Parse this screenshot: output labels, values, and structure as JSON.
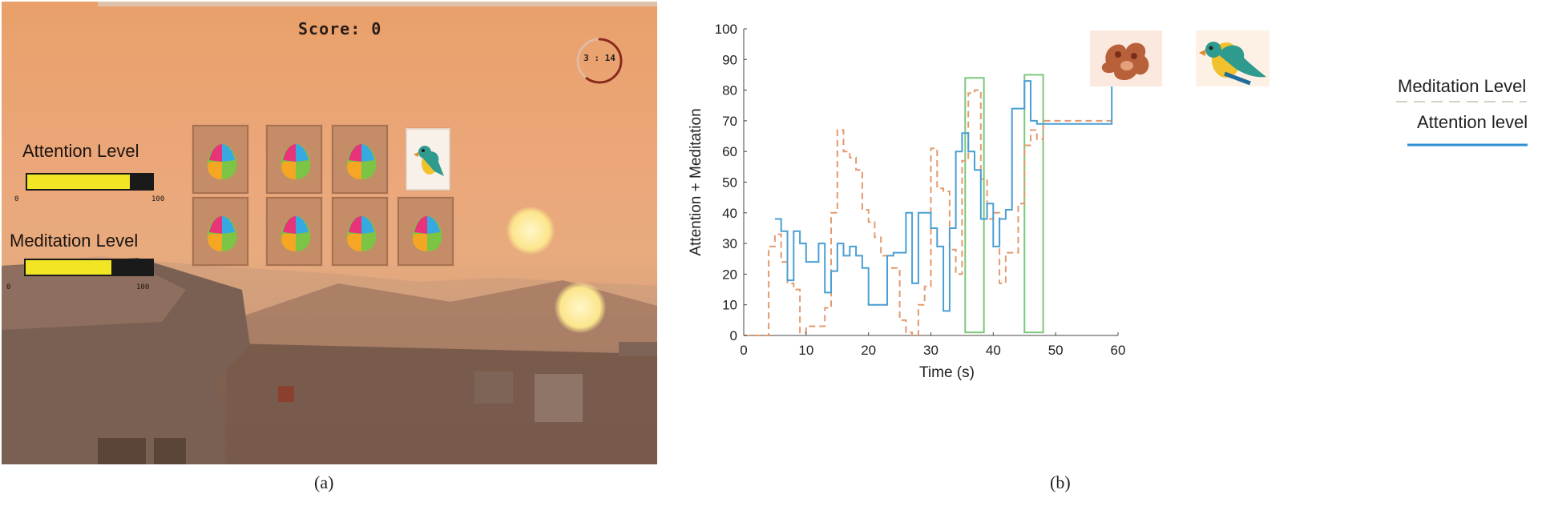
{
  "captions": {
    "a": "(a)",
    "b": "(b)"
  },
  "game": {
    "score_text": "Score: 0",
    "timer_text": "3 : 14",
    "timer_fraction": 0.6,
    "attention": {
      "label": "Attention Level",
      "value": 82,
      "min_label": "0",
      "max_label": "100"
    },
    "meditation": {
      "label": "Meditation Level",
      "value": 68,
      "min_label": "0",
      "max_label": "100"
    },
    "cards": [
      {
        "state": "hidden",
        "icon": "egg-puzzle-icon"
      },
      {
        "state": "hidden",
        "icon": "egg-puzzle-icon"
      },
      {
        "state": "hidden",
        "icon": "egg-puzzle-icon"
      },
      {
        "state": "revealed",
        "icon": "parrot-icon"
      },
      {
        "state": "hidden",
        "icon": "egg-puzzle-icon"
      },
      {
        "state": "hidden",
        "icon": "egg-puzzle-icon"
      },
      {
        "state": "hidden",
        "icon": "egg-puzzle-icon"
      },
      {
        "state": "hidden",
        "icon": "egg-puzzle-icon"
      }
    ],
    "colors": {
      "bar_fill": "#f2e624",
      "card": "#c58d67"
    }
  },
  "chart_data": {
    "type": "line",
    "title": "",
    "xlabel": "Time (s)",
    "ylabel": "Attention + Meditation",
    "xlim": [
      0,
      60
    ],
    "ylim": [
      0,
      100
    ],
    "xticks": [
      0,
      10,
      20,
      30,
      40,
      50,
      60
    ],
    "yticks": [
      0,
      10,
      20,
      30,
      40,
      50,
      60,
      70,
      80,
      90,
      100
    ],
    "grid": false,
    "legend_position": "right",
    "series": [
      {
        "name": "Meditation Level",
        "style": "dashed",
        "color": "#e39a6e",
        "x": [
          0,
          4,
          4,
          5,
          5,
          6,
          6,
          7,
          7,
          8,
          8,
          9,
          9,
          10,
          10,
          13,
          13,
          14,
          14,
          15,
          15,
          16,
          16,
          17,
          17,
          18,
          18,
          19,
          19,
          20,
          20,
          21,
          21,
          22,
          22,
          23,
          23,
          25,
          25,
          26,
          26,
          27,
          27,
          28,
          28,
          29,
          29,
          30,
          30,
          31,
          31,
          32,
          32,
          33,
          33,
          34,
          34,
          35,
          35,
          36,
          36,
          37,
          37,
          38,
          38,
          39,
          39,
          40,
          40,
          41,
          41,
          42,
          42,
          44,
          44,
          45,
          45,
          46,
          46,
          47,
          47,
          48,
          48,
          59
        ],
        "y": [
          0,
          0,
          29,
          29,
          33,
          33,
          24,
          24,
          17,
          17,
          15,
          15,
          1,
          1,
          3,
          3,
          9,
          9,
          40,
          40,
          67,
          67,
          60,
          60,
          58,
          58,
          54,
          54,
          41,
          41,
          37,
          37,
          32,
          32,
          26,
          26,
          22,
          22,
          5,
          5,
          1,
          1,
          0,
          0,
          10,
          10,
          16,
          16,
          61,
          61,
          48,
          48,
          47,
          47,
          28,
          28,
          20,
          20,
          57,
          57,
          79,
          79,
          80,
          80,
          51,
          51,
          38,
          38,
          40,
          40,
          17,
          17,
          27,
          27,
          43,
          43,
          62,
          62,
          67,
          67,
          64,
          64,
          70,
          70
        ]
      },
      {
        "name": "Attention level",
        "style": "solid",
        "color": "#4a9fd3",
        "x": [
          5,
          6,
          6,
          7,
          7,
          8,
          8,
          9,
          9,
          10,
          10,
          12,
          12,
          13,
          13,
          14,
          14,
          15,
          15,
          16,
          16,
          17,
          17,
          18,
          18,
          19,
          19,
          20,
          20,
          23,
          23,
          24,
          24,
          26,
          26,
          27,
          27,
          28,
          28,
          30,
          30,
          31,
          31,
          32,
          32,
          33,
          33,
          34,
          34,
          35,
          35,
          36,
          36,
          37,
          37,
          38,
          38,
          39,
          39,
          40,
          40,
          41,
          41,
          42,
          42,
          43,
          43,
          45,
          45,
          46,
          46,
          47,
          47,
          48,
          48,
          59,
          59
        ],
        "y": [
          38,
          38,
          34,
          34,
          18,
          18,
          34,
          34,
          30,
          30,
          24,
          24,
          30,
          30,
          14,
          14,
          21,
          21,
          30,
          30,
          26,
          26,
          29,
          29,
          26,
          26,
          22,
          22,
          10,
          10,
          26,
          26,
          27,
          27,
          40,
          40,
          17,
          17,
          40,
          40,
          35,
          35,
          29,
          29,
          8,
          8,
          35,
          35,
          60,
          60,
          66,
          66,
          60,
          60,
          54,
          54,
          38,
          38,
          43,
          43,
          29,
          29,
          38,
          38,
          41,
          41,
          74,
          74,
          83,
          83,
          70,
          70,
          69,
          69,
          69,
          69,
          91
        ]
      }
    ],
    "highlight_boxes": [
      {
        "x_range": [
          35.5,
          38.5
        ],
        "y_range": [
          1,
          84
        ],
        "color": "#7cc87c",
        "image": "teddy-bear-icon"
      },
      {
        "x_range": [
          45,
          48
        ],
        "y_range": [
          1,
          85
        ],
        "color": "#7cc87c",
        "image": "parrot-icon"
      }
    ]
  }
}
